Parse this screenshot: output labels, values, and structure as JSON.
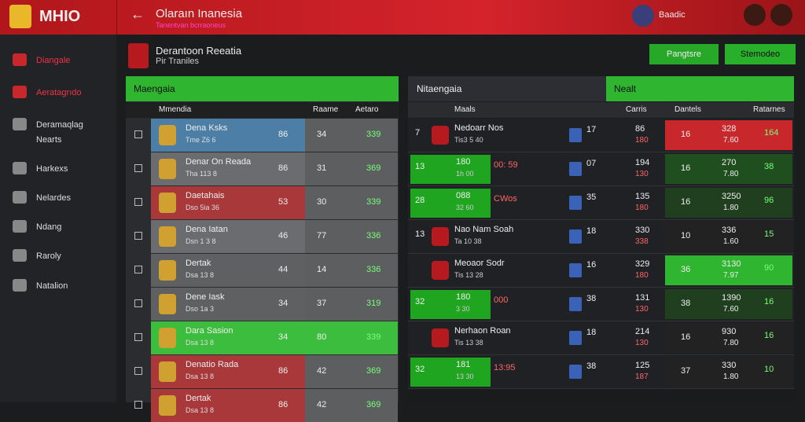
{
  "header": {
    "logo": "MHIO",
    "title": "Olaraın Inanesia",
    "subtitle": "Tanentvan bcrraoneus",
    "user": "Baadic"
  },
  "sidebar": {
    "items": [
      "Diangale",
      "Aeratagrıdo",
      "Deramaqlag Nearts",
      "Harkexs",
      "Nelardes",
      "Ndang",
      "Raroly",
      "Natalion"
    ]
  },
  "page": {
    "title": "Derantoon Reeatia",
    "subtitle": "Pir Traniles",
    "buttons": [
      "Pangtsre",
      "Stemodeo"
    ]
  },
  "left_panel": {
    "title": "Maengaia",
    "columns": [
      "Mmendia",
      "Raame",
      "Aetaro"
    ],
    "rows": [
      {
        "name": "Dena Ksks",
        "sub": "Tme Z6 6",
        "a": "86",
        "b": "34",
        "c": "339"
      },
      {
        "name": "Denar On Reada",
        "sub": "Tha 113 8",
        "a": "86",
        "b": "31",
        "c": "369"
      },
      {
        "name": "Daetahais",
        "sub": "Dso 5ia 36",
        "a": "53",
        "b": "30",
        "c": "339"
      },
      {
        "name": "Dena Iatan",
        "sub": "Dsn 1 3 8",
        "a": "46",
        "b": "77",
        "c": "336"
      },
      {
        "name": "Dertak",
        "sub": "Dsa 13 8",
        "a": "44",
        "b": "14",
        "c": "336"
      },
      {
        "name": "Dene Iask",
        "sub": "Dso 1a 3",
        "a": "34",
        "b": "37",
        "c": "319"
      },
      {
        "name": "Dara Sasion",
        "sub": "Dsa 13 8",
        "a": "34",
        "b": "80",
        "c": "339"
      },
      {
        "name": "Denatio Rada",
        "sub": "Dsa 13 8",
        "a": "86",
        "b": "42",
        "c": "369"
      },
      {
        "name": "Dertak",
        "sub": "Dsa 13 8",
        "a": "86",
        "b": "42",
        "c": "369"
      }
    ]
  },
  "right_panel": {
    "title": "Nitaengaia",
    "title2": "Nealt",
    "columns": [
      "Maals",
      "Carris",
      "Dantels",
      "Ratarnes"
    ],
    "rows": [
      {
        "lead": "7",
        "name": "Nedoarr Nos",
        "sub": "Tis3 5 40",
        "n": "17",
        "a": "86",
        "a2": "180",
        "d": "16",
        "e": "328",
        "e2": "7.60",
        "f": "164"
      },
      {
        "lead": "13",
        "name": "180",
        "sub": "1h 00",
        "note": "00: 59",
        "n": "07",
        "a": "194",
        "a2": "130",
        "d": "16",
        "e": "270",
        "e2": "7.80",
        "f": "38"
      },
      {
        "lead": "28",
        "name": "088",
        "sub": "32 60",
        "note": "CWos",
        "n": "35",
        "a": "135",
        "a2": "180",
        "d": "16",
        "e": "3250",
        "e2": "1.80",
        "f": "96"
      },
      {
        "lead": "13",
        "name": "Nao Nam Soah",
        "sub": "Ta 10 38",
        "n": "18",
        "a": "330",
        "a2": "338",
        "d": "10",
        "e": "336",
        "e2": "1.60",
        "f": "15"
      },
      {
        "name": "Meoaor Sodr",
        "sub": "Tis 13 28",
        "n": "16",
        "a": "329",
        "a2": "180",
        "d": "36",
        "e": "3130",
        "e2": "7.97",
        "f": "90"
      },
      {
        "lead": "32",
        "name": "180",
        "sub": "3 30",
        "note": "000",
        "n": "38",
        "a": "131",
        "a2": "130",
        "d": "38",
        "e": "1390",
        "e2": "7.60",
        "f": "16"
      },
      {
        "name": "Nerhaon Roan",
        "sub": "Tis 13 38",
        "n": "18",
        "a": "214",
        "a2": "130",
        "d": "16",
        "e": "930",
        "e2": "7.80",
        "f": "16"
      },
      {
        "lead": "32",
        "name": "181",
        "sub": "13 30",
        "note": "13:95",
        "n": "38",
        "a": "125",
        "a2": "187",
        "d": "37",
        "e": "330",
        "e2": "1.80",
        "f": "10"
      }
    ]
  }
}
